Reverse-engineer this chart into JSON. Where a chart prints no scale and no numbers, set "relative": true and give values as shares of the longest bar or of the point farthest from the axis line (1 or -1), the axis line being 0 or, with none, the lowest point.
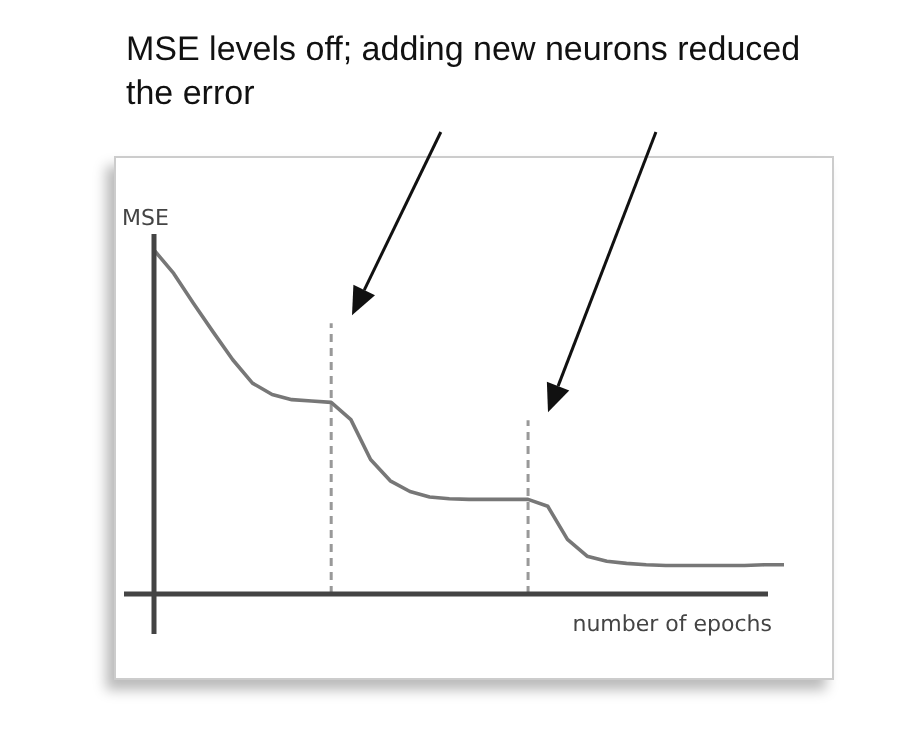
{
  "chart_data": {
    "type": "line",
    "relative": true,
    "xlabel": "number of epochs",
    "ylabel": "MSE",
    "annotations": [
      "MSE levels off; adding new neurons reduced the error"
    ],
    "categories": [
      null,
      null,
      null,
      null,
      null,
      null,
      null,
      null,
      null,
      null,
      null,
      null,
      null,
      null,
      null,
      null,
      null,
      null,
      null,
      null,
      null,
      null,
      null,
      null,
      null,
      null,
      null,
      null,
      null,
      null,
      null,
      null,
      null
    ],
    "series": [
      {
        "color": "#777777",
        "values": [
          1.0,
          0.932,
          0.845,
          0.762,
          0.681,
          0.613,
          0.58,
          0.565,
          0.561,
          0.557,
          0.507,
          0.391,
          0.329,
          0.298,
          0.282,
          0.277,
          0.275,
          0.275,
          0.275,
          0.275,
          0.255,
          0.159,
          0.11,
          0.095,
          0.089,
          0.085,
          0.083,
          0.083,
          0.083,
          0.083,
          0.083,
          0.085,
          0.085
        ]
      }
    ],
    "marker": "none",
    "line_style": "solid"
  }
}
